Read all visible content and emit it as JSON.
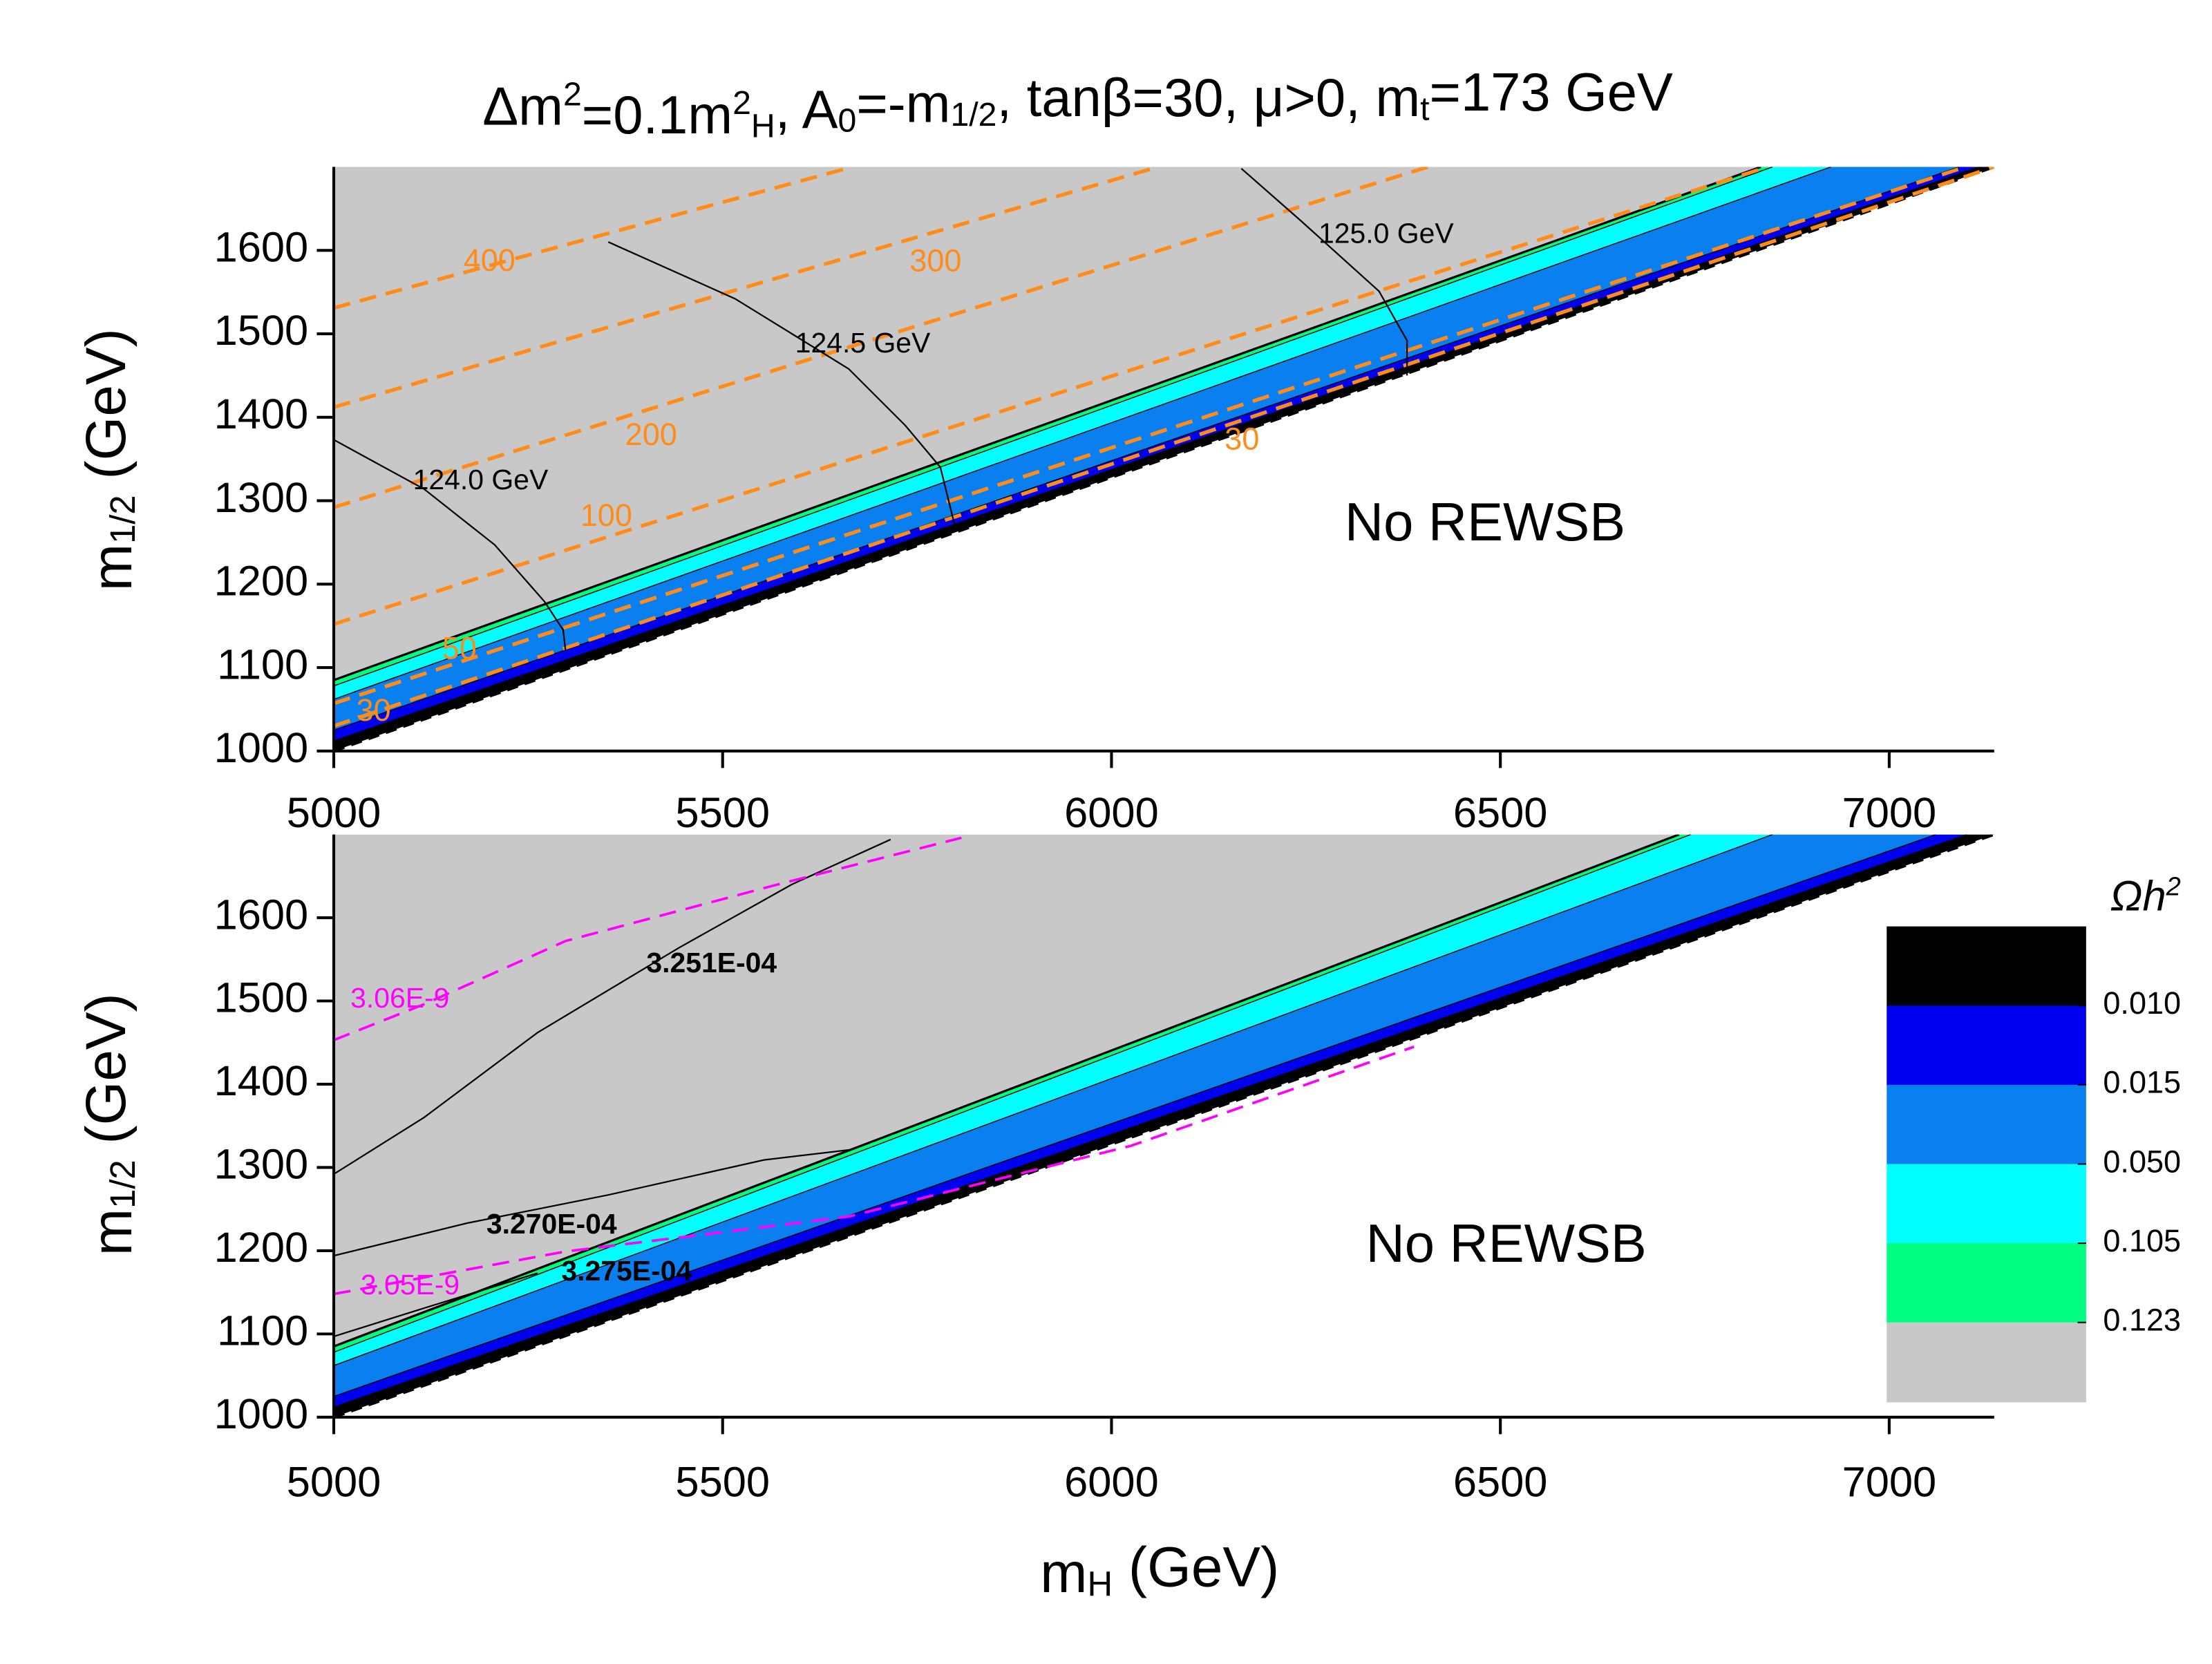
{
  "chart_data": [
    {
      "type": "contour",
      "title": [
        {
          "text": "Δm"
        },
        {
          "text": "2",
          "script": "sup"
        },
        {
          "text": "=0.1m"
        },
        {
          "text": "2",
          "script": "sup"
        },
        {
          "text": "H",
          "script": "sub"
        },
        {
          "text": ", A"
        },
        {
          "text": "0",
          "script": "sub"
        },
        {
          "text": "=-m"
        },
        {
          "text": "1/2",
          "script": "sub"
        },
        {
          "text": ", tanβ=30, μ>0, m"
        },
        {
          "text": "t",
          "script": "sub"
        },
        {
          "text": "=173 GeV"
        }
      ],
      "xlabel": [
        {
          "text": "m"
        },
        {
          "text": "H",
          "script": "sub"
        },
        {
          "text": " (GeV)"
        }
      ],
      "ylabel": [
        {
          "text": "m"
        },
        {
          "text": "1/2",
          "script": "sub"
        },
        {
          "text": " (GeV)"
        }
      ],
      "xlim": [
        5000,
        7135
      ],
      "ylim": [
        1000,
        1700
      ],
      "xticks": [
        5000,
        5500,
        6000,
        6500,
        7000
      ],
      "yticks": [
        1000,
        1100,
        1200,
        1300,
        1400,
        1500,
        1600
      ],
      "annotation": "No REWSB",
      "band_edges": [
        {
          "x": [
            5000,
            6835
          ],
          "y": [
            1085,
            1700
          ]
        },
        {
          "x": [
            5000,
            6850
          ],
          "y": [
            1078,
            1700
          ]
        },
        {
          "x": [
            5000,
            6925
          ],
          "y": [
            1062,
            1700
          ]
        },
        {
          "x": [
            5000,
            7090
          ],
          "y": [
            1025,
            1700
          ]
        },
        {
          "x": [
            5000,
            7115
          ],
          "y": [
            1012,
            1700
          ]
        }
      ],
      "boundary": {
        "x": [
          5000,
          7135
        ],
        "y": [
          1000,
          1700
        ]
      },
      "contours": [
        {
          "level": 400,
          "color": "#ff8c1a",
          "dashed": true,
          "x": [
            5000,
            5667
          ],
          "y": [
            1531,
            1700
          ]
        },
        {
          "level": 300,
          "color": "#ff8c1a",
          "dashed": true,
          "x": [
            5000,
            6060
          ],
          "y": [
            1412,
            1700
          ]
        },
        {
          "level": 200,
          "color": "#ff8c1a",
          "dashed": true,
          "x": [
            5000,
            6407
          ],
          "y": [
            1292,
            1700
          ]
        },
        {
          "level": 100,
          "color": "#ff8c1a",
          "dashed": true,
          "x": [
            5000,
            6844
          ],
          "y": [
            1152,
            1700
          ]
        },
        {
          "level": 50,
          "color": "#ff8c1a",
          "dashed": true,
          "x": [
            5000,
            7098
          ],
          "y": [
            1057,
            1700
          ]
        },
        {
          "level": 30,
          "color": "#ff8c1a",
          "dashed": true,
          "x": [
            5000,
            7135
          ],
          "y": [
            1030,
            1700
          ]
        },
        {
          "label": "124.0 GeV",
          "color": "#000000",
          "x": [
            5000,
            5116,
            5207,
            5271,
            5295,
            5298
          ],
          "y": [
            1373,
            1314,
            1247,
            1179,
            1145,
            1120
          ]
        },
        {
          "label": "124.5 GeV",
          "color": "#000000",
          "x": [
            5353,
            5516,
            5662,
            5735,
            5780,
            5798
          ],
          "y": [
            1610,
            1542,
            1458,
            1390,
            1340,
            1272
          ]
        },
        {
          "label": "125.0 GeV",
          "color": "#000000",
          "x": [
            6167,
            6244,
            6344,
            6380,
            6380
          ],
          "y": [
            1698,
            1635,
            1551,
            1492,
            1450
          ]
        }
      ]
    },
    {
      "type": "contour",
      "xlabel": [
        {
          "text": "m"
        },
        {
          "text": "H",
          "script": "sub"
        },
        {
          "text": " (GeV)"
        }
      ],
      "ylabel": [
        {
          "text": "m"
        },
        {
          "text": "1/2",
          "script": "sub"
        },
        {
          "text": " (GeV)"
        }
      ],
      "xlim": [
        5000,
        7135
      ],
      "ylim": [
        1000,
        1700
      ],
      "xticks": [
        5000,
        5500,
        6000,
        6500,
        7000
      ],
      "yticks": [
        1000,
        1100,
        1200,
        1300,
        1400,
        1500,
        1600
      ],
      "annotation": "No REWSB",
      "band_edges": [
        {
          "x": [
            5000,
            6730
          ],
          "y": [
            1085,
            1700
          ]
        },
        {
          "x": [
            5000,
            6745
          ],
          "y": [
            1078,
            1700
          ]
        },
        {
          "x": [
            5000,
            6850
          ],
          "y": [
            1062,
            1700
          ]
        },
        {
          "x": [
            5000,
            7060
          ],
          "y": [
            1025,
            1700
          ]
        },
        {
          "x": [
            5000,
            7100
          ],
          "y": [
            1012,
            1700
          ]
        }
      ],
      "boundary": {
        "x": [
          5000,
          7135
        ],
        "y": [
          1000,
          1700
        ]
      },
      "contours": [
        {
          "label": "3.251E-04",
          "color": "#000000",
          "x": [
            5000,
            5116,
            5262,
            5444,
            5589,
            5716
          ],
          "y": [
            1292,
            1360,
            1462,
            1564,
            1640,
            1694
          ]
        },
        {
          "label": "3.270E-04",
          "color": "#000000",
          "x": [
            5000,
            5171,
            5353,
            5553,
            5662
          ],
          "y": [
            1194,
            1233,
            1267,
            1309,
            1321
          ]
        },
        {
          "label": "3.275E-04",
          "color": "#000000",
          "x": [
            5000,
            5116,
            5262
          ],
          "y": [
            1097,
            1131,
            1173
          ]
        },
        {
          "label": "3.06E-9",
          "color": "#ff00ff",
          "dashed": true,
          "x": [
            5000,
            5116,
            5298,
            5571,
            5807
          ],
          "y": [
            1453,
            1496,
            1572,
            1640,
            1696
          ]
        },
        {
          "label": "3.05E-9",
          "color": "#ff00ff",
          "dashed": true,
          "x": [
            5000,
            5298,
            5662,
            6025,
            6389
          ],
          "y": [
            1148,
            1199,
            1241,
            1326,
            1445
          ]
        }
      ],
      "colorbar": {
        "title": [
          {
            "text": "Ωh"
          },
          {
            "text": "2",
            "script": "sup"
          }
        ],
        "colors": [
          "#000000",
          "#0000f0",
          "#0a80f0",
          "#00ffff",
          "#00ff80",
          "#c8c8c8"
        ],
        "ticks": [
          {
            "value": 0.01,
            "label": "0.010"
          },
          {
            "value": 0.015,
            "label": "0.015"
          },
          {
            "value": 0.05,
            "label": "0.050"
          },
          {
            "value": 0.105,
            "label": "0.105"
          },
          {
            "value": 0.123,
            "label": "0.123"
          }
        ]
      }
    }
  ]
}
